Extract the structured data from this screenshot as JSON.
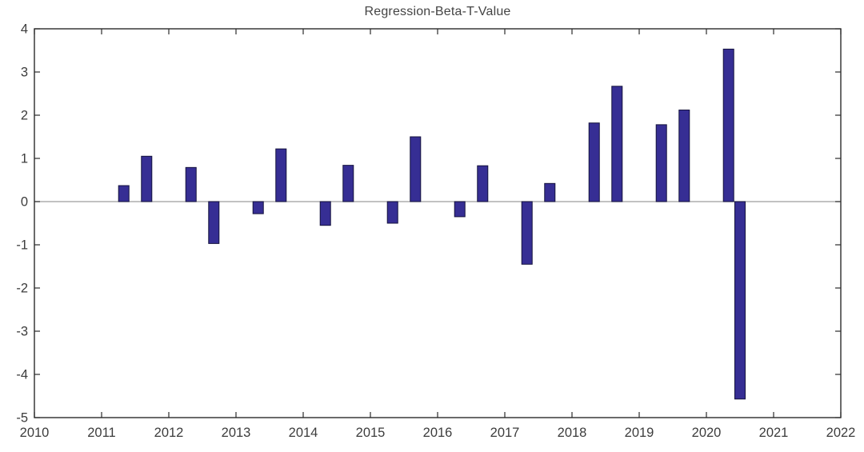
{
  "chart_data": {
    "type": "bar",
    "title": "Regression-Beta-T-Value",
    "xlabel": "",
    "ylabel": "",
    "xlim": [
      2010,
      2022
    ],
    "ylim": [
      -5,
      4
    ],
    "x_ticks": [
      2010,
      2011,
      2012,
      2013,
      2014,
      2015,
      2016,
      2017,
      2018,
      2019,
      2020,
      2021,
      2022
    ],
    "y_ticks": [
      -5,
      -4,
      -3,
      -2,
      -1,
      0,
      1,
      2,
      3,
      4
    ],
    "grid": false,
    "legend": "none",
    "bar_width_years": 0.155,
    "bar_color": "#362E94",
    "bar_edge_color": "#14123D",
    "axis_color": "#2b2b2b",
    "zero_line_color": "#9e9e9e",
    "label_color": "#3c3c3c",
    "points": [
      {
        "x": 2011.33,
        "y": 0.37
      },
      {
        "x": 2011.67,
        "y": 1.05
      },
      {
        "x": 2012.33,
        "y": 0.79
      },
      {
        "x": 2012.67,
        "y": -0.97
      },
      {
        "x": 2013.33,
        "y": -0.28
      },
      {
        "x": 2013.67,
        "y": 1.22
      },
      {
        "x": 2014.33,
        "y": -0.55
      },
      {
        "x": 2014.67,
        "y": 0.84
      },
      {
        "x": 2015.33,
        "y": -0.5
      },
      {
        "x": 2015.67,
        "y": 1.5
      },
      {
        "x": 2016.33,
        "y": -0.35
      },
      {
        "x": 2016.67,
        "y": 0.83
      },
      {
        "x": 2017.33,
        "y": -1.45
      },
      {
        "x": 2017.67,
        "y": 0.42
      },
      {
        "x": 2018.33,
        "y": 1.82
      },
      {
        "x": 2018.67,
        "y": 2.67
      },
      {
        "x": 2019.33,
        "y": 1.78
      },
      {
        "x": 2019.67,
        "y": 2.12
      },
      {
        "x": 2020.33,
        "y": 3.53
      },
      {
        "x": 2020.5,
        "y": -4.57
      }
    ]
  }
}
